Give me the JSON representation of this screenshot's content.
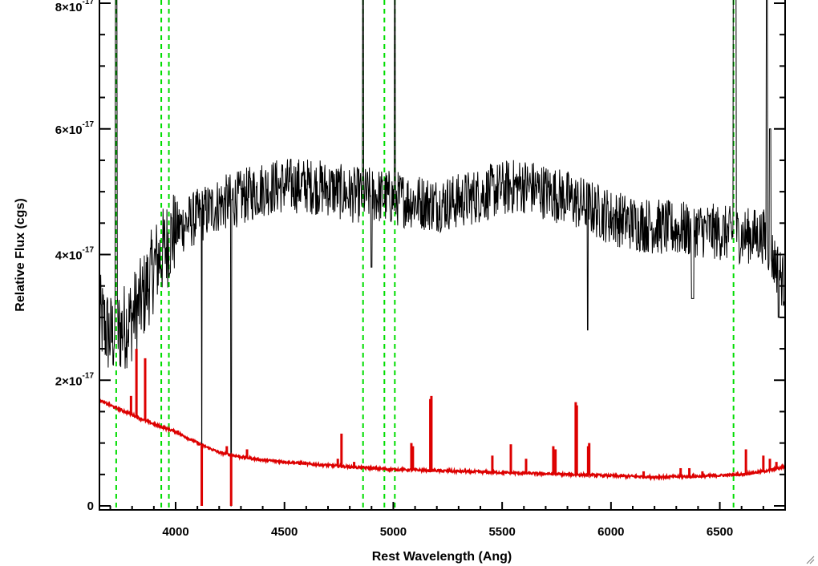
{
  "chart_data": {
    "type": "line",
    "xlabel": "Rest Wavelength (Ang)",
    "ylabel": "Relative Flux (cgs)",
    "xlim": [
      3650,
      6800
    ],
    "ylim": [
      0,
      8e-17
    ],
    "x_ticks": [
      4000,
      4500,
      5000,
      5500,
      6000,
      6500
    ],
    "x_tick_labels": [
      "4000",
      "4500",
      "5000",
      "5500",
      "6000",
      "6500"
    ],
    "y_ticks": [
      {
        "value": 0,
        "mantissa": "0",
        "power": ""
      },
      {
        "value": 2e-17,
        "mantissa": "2×10",
        "power": "-17"
      },
      {
        "value": 4e-17,
        "mantissa": "4×10",
        "power": "-17"
      },
      {
        "value": 6e-17,
        "mantissa": "6×10",
        "power": "-17"
      },
      {
        "value": 8e-17,
        "mantissa": "8×10",
        "power": "-17"
      }
    ],
    "reference_lines": {
      "color": "#00dd00",
      "style": "dashed",
      "x": [
        3727,
        3934,
        3969,
        4861,
        4959,
        5007,
        6563
      ]
    },
    "series": [
      {
        "color": "#000000",
        "noise_amplitude": 4.5e-18,
        "continuum": [
          [
            3650,
            3e-17
          ],
          [
            3700,
            2.7e-17
          ],
          [
            3750,
            2.8e-17
          ],
          [
            3800,
            3e-17
          ],
          [
            3850,
            3.3e-17
          ],
          [
            3900,
            3.8e-17
          ],
          [
            3950,
            4.1e-17
          ],
          [
            4000,
            4.4e-17
          ],
          [
            4100,
            4.6e-17
          ],
          [
            4200,
            4.8e-17
          ],
          [
            4300,
            4.9e-17
          ],
          [
            4400,
            5.05e-17
          ],
          [
            4500,
            5.1e-17
          ],
          [
            4600,
            5.1e-17
          ],
          [
            4700,
            5.05e-17
          ],
          [
            4800,
            4.95e-17
          ],
          [
            4900,
            4.95e-17
          ],
          [
            5000,
            4.9e-17
          ],
          [
            5100,
            4.85e-17
          ],
          [
            5200,
            4.8e-17
          ],
          [
            5300,
            4.85e-17
          ],
          [
            5400,
            4.95e-17
          ],
          [
            5500,
            5.05e-17
          ],
          [
            5600,
            5.1e-17
          ],
          [
            5700,
            5e-17
          ],
          [
            5800,
            4.9e-17
          ],
          [
            5900,
            4.75e-17
          ],
          [
            6000,
            4.6e-17
          ],
          [
            6100,
            4.5e-17
          ],
          [
            6200,
            4.45e-17
          ],
          [
            6300,
            4.4e-17
          ],
          [
            6400,
            4.4e-17
          ],
          [
            6500,
            4.35e-17
          ],
          [
            6600,
            4.3e-17
          ],
          [
            6700,
            4.3e-17
          ],
          [
            6800,
            3.5e-17
          ]
        ],
        "features": [
          {
            "x": 3727,
            "value": 9e-17,
            "width": 6
          },
          {
            "x": 4120,
            "value": 0.0,
            "width": 3
          },
          {
            "x": 4255,
            "value": 0.0,
            "width": 3
          },
          {
            "x": 4861,
            "value": 9e-17,
            "width": 5
          },
          {
            "x": 4900,
            "value": 3.8e-17,
            "width": 6
          },
          {
            "x": 5007,
            "value": 9e-17,
            "width": 5
          },
          {
            "x": 5893,
            "value": 2.8e-17,
            "width": 5
          },
          {
            "x": 6375,
            "value": 3.3e-17,
            "width": 10
          },
          {
            "x": 6568,
            "value": 9e-17,
            "width": 12
          },
          {
            "x": 6716,
            "value": 9e-17,
            "width": 6
          },
          {
            "x": 6731,
            "value": 6e-17,
            "width": 6
          },
          {
            "x": 6770,
            "value": 3e-17,
            "width": 6
          }
        ]
      },
      {
        "color": "#dd0000",
        "continuum": [
          [
            3650,
            1.68e-17
          ],
          [
            3700,
            1.6e-17
          ],
          [
            3800,
            1.45e-17
          ],
          [
            3900,
            1.3e-17
          ],
          [
            4000,
            1.18e-17
          ],
          [
            4100,
            1e-17
          ],
          [
            4200,
            8.5e-18
          ],
          [
            4300,
            7.8e-18
          ],
          [
            4400,
            7.3e-18
          ],
          [
            4500,
            7e-18
          ],
          [
            4600,
            6.7e-18
          ],
          [
            4800,
            6.2e-18
          ],
          [
            5000,
            5.8e-18
          ],
          [
            5200,
            5.6e-18
          ],
          [
            5500,
            5.3e-18
          ],
          [
            5800,
            5e-18
          ],
          [
            6000,
            4.8e-18
          ],
          [
            6200,
            4.6e-18
          ],
          [
            6400,
            4.7e-18
          ],
          [
            6600,
            5e-18
          ],
          [
            6700,
            5.5e-18
          ],
          [
            6800,
            6.2e-18
          ]
        ],
        "lines": [
          {
            "x": 3795,
            "value": 1.75e-17
          },
          {
            "x": 3820,
            "value": 2.5e-17
          },
          {
            "x": 3860,
            "value": 2.35e-17
          },
          {
            "x": 4010,
            "value": 1.2e-17
          },
          {
            "x": 4120,
            "value": 0.0
          },
          {
            "x": 4235,
            "value": 9.5e-18
          },
          {
            "x": 4255,
            "value": 0.0
          },
          {
            "x": 4328,
            "value": 9e-18
          },
          {
            "x": 4745,
            "value": 7.5e-18
          },
          {
            "x": 4762,
            "value": 1.15e-17
          },
          {
            "x": 4820,
            "value": 7e-18
          },
          {
            "x": 5083,
            "value": 1e-17
          },
          {
            "x": 5090,
            "value": 9.5e-18
          },
          {
            "x": 5170,
            "value": 1.7e-17
          },
          {
            "x": 5175,
            "value": 1.75e-17
          },
          {
            "x": 5455,
            "value": 8e-18
          },
          {
            "x": 5540,
            "value": 9.8e-18
          },
          {
            "x": 5610,
            "value": 7.5e-18
          },
          {
            "x": 5735,
            "value": 9.5e-18
          },
          {
            "x": 5745,
            "value": 9e-18
          },
          {
            "x": 5838,
            "value": 1.65e-17
          },
          {
            "x": 5843,
            "value": 1.6e-17
          },
          {
            "x": 5895,
            "value": 9.5e-18
          },
          {
            "x": 5900,
            "value": 1e-17
          },
          {
            "x": 6150,
            "value": 5.5e-18
          },
          {
            "x": 6320,
            "value": 6e-18
          },
          {
            "x": 6360,
            "value": 6e-18
          },
          {
            "x": 6420,
            "value": 5.5e-18
          },
          {
            "x": 6620,
            "value": 9e-18
          },
          {
            "x": 6700,
            "value": 8e-18
          },
          {
            "x": 6730,
            "value": 7.5e-18
          },
          {
            "x": 6760,
            "value": 7e-18
          }
        ]
      }
    ]
  }
}
